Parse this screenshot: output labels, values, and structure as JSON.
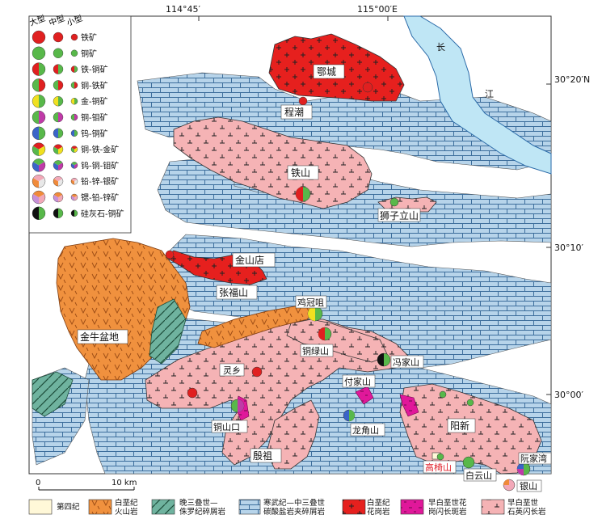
{
  "coords": {
    "top_lon_1": "114°45′",
    "top_lon_2": "115°00′E",
    "lat_1": "30°20′N",
    "lat_2": "30°10′",
    "lat_3": "30°00′"
  },
  "legend": {
    "size_labels": [
      "大型",
      "中型",
      "小型"
    ],
    "items": [
      {
        "label": "铁矿",
        "colors": [
          "#e02020"
        ]
      },
      {
        "label": "铜矿",
        "colors": [
          "#58b84a"
        ]
      },
      {
        "label": "铁-铜矿",
        "colors": [
          "#e02020",
          "#58b84a"
        ]
      },
      {
        "label": "铜-铁矿",
        "colors": [
          "#58b84a",
          "#e02020"
        ]
      },
      {
        "label": "金-铜矿",
        "colors": [
          "#f0e020",
          "#58b84a"
        ]
      },
      {
        "label": "铜-钼矿",
        "colors": [
          "#58b84a",
          "#c03aa8"
        ]
      },
      {
        "label": "钨-铜矿",
        "colors": [
          "#3a64c8",
          "#58b84a"
        ]
      },
      {
        "label": "铜-铁-金矿",
        "colors": [
          "#58b84a",
          "#e02020",
          "#f0e020"
        ]
      },
      {
        "label": "钨-铜-钼矿",
        "colors": [
          "#3a64c8",
          "#58b84a",
          "#c03aa8"
        ]
      },
      {
        "label": "铅-锌-银矿",
        "colors": [
          "#f08a3a",
          "#f2a8b8",
          "#e8e8e8"
        ]
      },
      {
        "label": "锶-铅-锌矿",
        "colors": [
          "#c890d8",
          "#f08a3a",
          "#f2a8b8"
        ]
      },
      {
        "label": "硅灰石-铜矿",
        "colors": [
          "#111111",
          "#58b84a"
        ]
      }
    ]
  },
  "places": {
    "echeng": "鄂城",
    "chengchao": "程潮",
    "tieshan": "铁山",
    "shiziliushan": "狮子立山",
    "jinshandian": "金山店",
    "zhangfushan": "张福山",
    "jinniu": "金牛盆地",
    "jiguanzui": "鸡冠咀",
    "tonglushan": "铜绿山",
    "lingxiang": "灵乡",
    "fujiashan": "付家山",
    "fengjiashan": "冯家山",
    "tongshankou": "铜山口",
    "longjiaoshan": "龙角山",
    "yangxin": "阳新",
    "yinzu": "殷祖",
    "gaoyishan": "高椅山",
    "baiyunshan": "白云山",
    "ruanjiawan": "阮家湾",
    "yinshan": "银山",
    "changjiang_1": "长",
    "changjiang_2": "江"
  },
  "scale": {
    "zero": "0",
    "label": "10 km"
  },
  "bottom_legend": [
    {
      "label": "第四纪",
      "key": "quaternary"
    },
    {
      "label": "白垩纪\n火山岩",
      "key": "volcanic"
    },
    {
      "label": "晚三叠世—\n侏罗纪碎屑岩",
      "key": "clastic"
    },
    {
      "label": "寒武纪—中三叠世\n碳酸盐岩夹碎屑岩",
      "key": "carbonate"
    },
    {
      "label": "白垩纪\n花岗岩",
      "key": "granite"
    },
    {
      "label": "早白垩世花\n岗闪长斑岩",
      "key": "porphyry"
    },
    {
      "label": "早白垩世\n石英闪长岩",
      "key": "diorite"
    }
  ],
  "colors": {
    "carbonate": "#b7d4ea",
    "diorite": "#f5b3b5",
    "granite": "#e6201e",
    "volcanic": "#f0913e",
    "clastic": "#6fb39f",
    "porphyry": "#e0189a",
    "quaternary": "#fff8d8",
    "river": "#bfe6f5",
    "gaoyishan_label": "#e0202a"
  }
}
